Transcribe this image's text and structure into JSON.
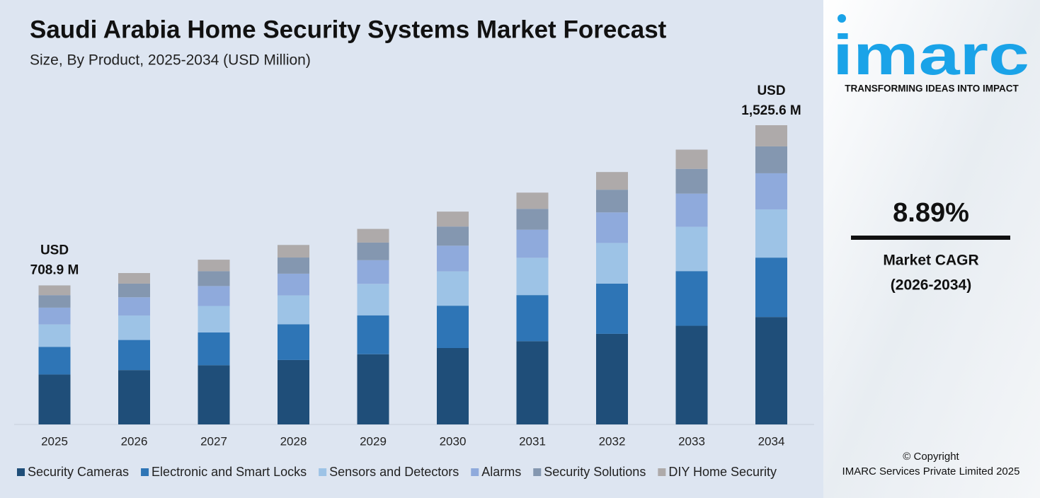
{
  "chart_data": {
    "type": "stacked_bar",
    "title": "Saudi Arabia Home Security Systems Market Forecast",
    "subtitle": "Size, By Product, 2025-2034 (USD Million)",
    "categories": [
      "2025",
      "2026",
      "2027",
      "2028",
      "2029",
      "2030",
      "2031",
      "2032",
      "2033",
      "2034"
    ],
    "series": [
      {
        "name": "Security Cameras",
        "color": "#1f4e79",
        "values": [
          254.5,
          277.1,
          301.6,
          328.5,
          357.9,
          389.5,
          424.3,
          462.0,
          503.0,
          547.6
        ]
      },
      {
        "name": "Electronic and Smart Locks",
        "color": "#2e75b6",
        "values": [
          141.1,
          153.6,
          167.2,
          182.1,
          198.4,
          215.9,
          235.2,
          256.1,
          278.8,
          303.0
        ]
      },
      {
        "name": "Sensors and Detectors",
        "color": "#9dc3e6",
        "values": [
          114.1,
          124.3,
          135.2,
          147.3,
          160.5,
          174.7,
          190.3,
          207.2,
          225.6,
          246.0
        ]
      },
      {
        "name": "Alarms",
        "color": "#8faadc",
        "values": [
          85.8,
          93.4,
          101.6,
          110.7,
          120.6,
          131.3,
          143.0,
          155.7,
          169.5,
          184.0
        ]
      },
      {
        "name": "Security Solutions",
        "color": "#8497b0",
        "values": [
          63.8,
          69.5,
          75.6,
          82.4,
          89.7,
          97.7,
          106.4,
          115.8,
          126.1,
          137.0
        ]
      },
      {
        "name": "DIY Home Security",
        "color": "#aeaaaa",
        "values": [
          49.6,
          54.0,
          58.8,
          64.1,
          69.8,
          76.0,
          82.7,
          90.1,
          98.1,
          108.0
        ]
      }
    ],
    "annotations": [
      [
        "USD",
        "708.9 M"
      ],
      [
        "USD",
        "1,525.6 M"
      ]
    ]
  },
  "side_panel": {
    "logo": "imarc",
    "tagline": "TRANSFORMING IDEAS INTO IMPACT",
    "cagr": "8.89%",
    "cagr_label": "Market CAGR",
    "cagr_period": "(2026-2034)",
    "copyright": "© Copyright",
    "company": "IMARC Services Private Limited 2025"
  }
}
